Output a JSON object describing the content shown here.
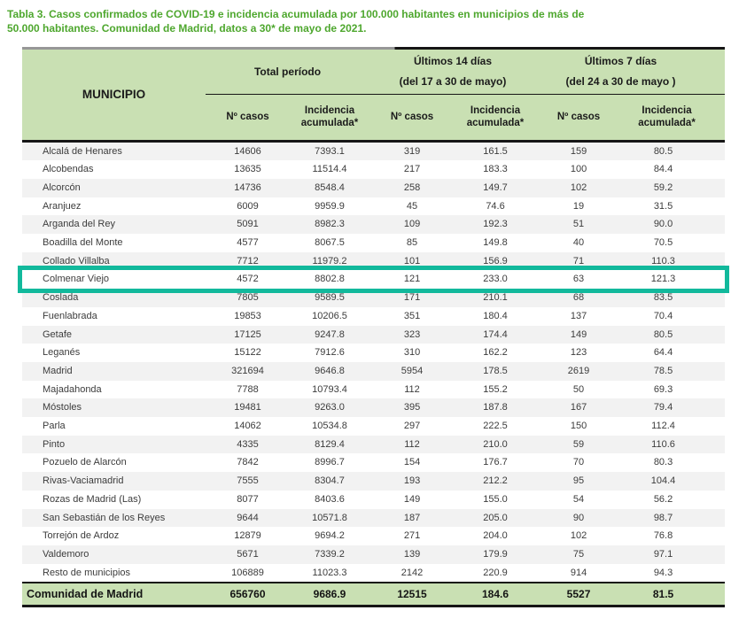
{
  "title_lines": [
    "Tabla 3. Casos confirmados de COVID-19 e incidencia acumulada por 100.000 habitantes en municipios de más de",
    "50.000 habitantes. Comunidad de Madrid, datos a 30* de mayo de 2021."
  ],
  "colors": {
    "title_green": "#4ea72e",
    "header_bg": "#c9e0b3",
    "stripe_gray": "#f2f2f2",
    "highlight_teal": "#12b99c",
    "border_black": "#161616"
  },
  "table": {
    "municipio_header": "MUNICIPIO",
    "groups": [
      {
        "label": "Total período"
      },
      {
        "label": "Últimos 14 días",
        "sublabel": "(del 17 a 30 de mayo)"
      },
      {
        "label": "Últimos 7 días",
        "sublabel": "(del 24 a 30 de mayo )"
      }
    ],
    "subheaders": {
      "cases": "Nº casos",
      "incidence": "Incidencia acumulada*"
    },
    "columns": [
      "Nº casos total",
      "Incidencia acumulada total",
      "Nº casos 14 días",
      "Incidencia acumulada 14 días",
      "Nº casos 7 días",
      "Incidencia acumulada 7 días"
    ],
    "rows": [
      {
        "municipio": "Alcalá de Henares",
        "values": [
          "14606",
          "7393.1",
          "319",
          "161.5",
          "159",
          "80.5"
        ],
        "highlight": false
      },
      {
        "municipio": "Alcobendas",
        "values": [
          "13635",
          "11514.4",
          "217",
          "183.3",
          "100",
          "84.4"
        ],
        "highlight": false
      },
      {
        "municipio": "Alcorcón",
        "values": [
          "14736",
          "8548.4",
          "258",
          "149.7",
          "102",
          "59.2"
        ],
        "highlight": false
      },
      {
        "municipio": "Aranjuez",
        "values": [
          "6009",
          "9959.9",
          "45",
          "74.6",
          "19",
          "31.5"
        ],
        "highlight": false
      },
      {
        "municipio": "Arganda del Rey",
        "values": [
          "5091",
          "8982.3",
          "109",
          "192.3",
          "51",
          "90.0"
        ],
        "highlight": false
      },
      {
        "municipio": "Boadilla del Monte",
        "values": [
          "4577",
          "8067.5",
          "85",
          "149.8",
          "40",
          "70.5"
        ],
        "highlight": false
      },
      {
        "municipio": "Collado Villalba",
        "values": [
          "7712",
          "11979.2",
          "101",
          "156.9",
          "71",
          "110.3"
        ],
        "highlight": false
      },
      {
        "municipio": "Colmenar Viejo",
        "values": [
          "4572",
          "8802.8",
          "121",
          "233.0",
          "63",
          "121.3"
        ],
        "highlight": true
      },
      {
        "municipio": "Coslada",
        "values": [
          "7805",
          "9589.5",
          "171",
          "210.1",
          "68",
          "83.5"
        ],
        "highlight": false
      },
      {
        "municipio": "Fuenlabrada",
        "values": [
          "19853",
          "10206.5",
          "351",
          "180.4",
          "137",
          "70.4"
        ],
        "highlight": false
      },
      {
        "municipio": "Getafe",
        "values": [
          "17125",
          "9247.8",
          "323",
          "174.4",
          "149",
          "80.5"
        ],
        "highlight": false
      },
      {
        "municipio": "Leganés",
        "values": [
          "15122",
          "7912.6",
          "310",
          "162.2",
          "123",
          "64.4"
        ],
        "highlight": false
      },
      {
        "municipio": "Madrid",
        "values": [
          "321694",
          "9646.8",
          "5954",
          "178.5",
          "2619",
          "78.5"
        ],
        "highlight": false
      },
      {
        "municipio": "Majadahonda",
        "values": [
          "7788",
          "10793.4",
          "112",
          "155.2",
          "50",
          "69.3"
        ],
        "highlight": false
      },
      {
        "municipio": "Móstoles",
        "values": [
          "19481",
          "9263.0",
          "395",
          "187.8",
          "167",
          "79.4"
        ],
        "highlight": false
      },
      {
        "municipio": "Parla",
        "values": [
          "14062",
          "10534.8",
          "297",
          "222.5",
          "150",
          "112.4"
        ],
        "highlight": false
      },
      {
        "municipio": "Pinto",
        "values": [
          "4335",
          "8129.4",
          "112",
          "210.0",
          "59",
          "110.6"
        ],
        "highlight": false
      },
      {
        "municipio": "Pozuelo de Alarcón",
        "values": [
          "7842",
          "8996.7",
          "154",
          "176.7",
          "70",
          "80.3"
        ],
        "highlight": false
      },
      {
        "municipio": "Rivas-Vaciamadrid",
        "values": [
          "7555",
          "8304.7",
          "193",
          "212.2",
          "95",
          "104.4"
        ],
        "highlight": false
      },
      {
        "municipio": "Rozas de Madrid (Las)",
        "values": [
          "8077",
          "8403.6",
          "149",
          "155.0",
          "54",
          "56.2"
        ],
        "highlight": false
      },
      {
        "municipio": "San Sebastián de los Reyes",
        "values": [
          "9644",
          "10571.8",
          "187",
          "205.0",
          "90",
          "98.7"
        ],
        "highlight": false
      },
      {
        "municipio": "Torrejón de Ardoz",
        "values": [
          "12879",
          "9694.2",
          "271",
          "204.0",
          "102",
          "76.8"
        ],
        "highlight": false
      },
      {
        "municipio": "Valdemoro",
        "values": [
          "5671",
          "7339.2",
          "139",
          "179.9",
          "75",
          "97.1"
        ],
        "highlight": false
      },
      {
        "municipio": "Resto de municipios",
        "values": [
          "106889",
          "11023.3",
          "2142",
          "220.9",
          "914",
          "94.3"
        ],
        "highlight": false
      }
    ],
    "total_row": {
      "municipio": "Comunidad de Madrid",
      "values": [
        "656760",
        "9686.9",
        "12515",
        "184.6",
        "5527",
        "81.5"
      ]
    }
  }
}
